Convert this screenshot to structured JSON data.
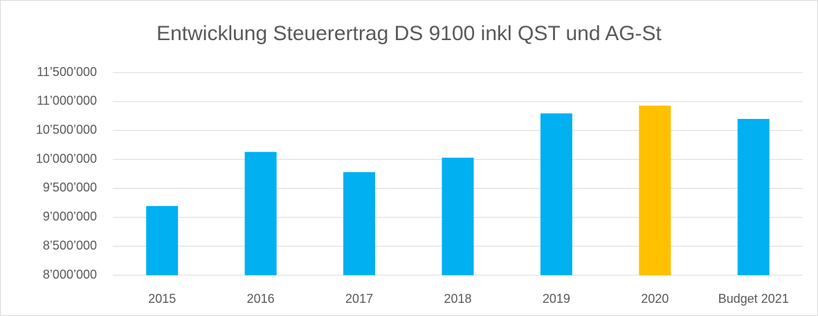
{
  "chart_data": {
    "type": "bar",
    "title": "Entwicklung Steuerertrag DS 9100 inkl QST und AG-St",
    "categories": [
      "2015",
      "2016",
      "2017",
      "2018",
      "2019",
      "2020",
      "Budget 2021"
    ],
    "values": [
      9195000,
      10130000,
      9780000,
      10030000,
      10795000,
      10930000,
      10700000
    ],
    "colors": [
      "#00b0f0",
      "#00b0f0",
      "#00b0f0",
      "#00b0f0",
      "#00b0f0",
      "#ffc000",
      "#00b0f0"
    ],
    "ylim": [
      8000000,
      11500000
    ],
    "yticks": [
      {
        "value": 8000000,
        "label": "8’000’000"
      },
      {
        "value": 8500000,
        "label": "8’500’000"
      },
      {
        "value": 9000000,
        "label": "9’000’000"
      },
      {
        "value": 9500000,
        "label": "9’500’000"
      },
      {
        "value": 10000000,
        "label": "10’000’000"
      },
      {
        "value": 10500000,
        "label": "10’500’000"
      },
      {
        "value": 11000000,
        "label": "11’000’000"
      },
      {
        "value": 11500000,
        "label": "11’500’000"
      }
    ],
    "grid": true
  }
}
